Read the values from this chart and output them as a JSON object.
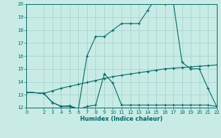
{
  "xlabel": "Humidex (Indice chaleur)",
  "xlim": [
    0,
    22
  ],
  "ylim": [
    12,
    20
  ],
  "yticks": [
    12,
    13,
    14,
    15,
    16,
    17,
    18,
    19,
    20
  ],
  "xticks": [
    0,
    2,
    3,
    4,
    5,
    6,
    7,
    8,
    9,
    10,
    11,
    12,
    13,
    14,
    15,
    16,
    17,
    18,
    19,
    20,
    21,
    22
  ],
  "background_color": "#c8ebe5",
  "line_color": "#006666",
  "grid_color": "#a0d0cc",
  "line1_x": [
    0,
    2,
    3,
    4,
    5,
    6,
    7,
    8,
    9,
    10,
    11,
    12,
    13,
    14,
    15,
    16,
    17,
    18,
    19,
    20,
    21,
    22
  ],
  "line1_y": [
    13.2,
    13.1,
    13.3,
    13.5,
    13.65,
    13.8,
    13.95,
    14.1,
    14.25,
    14.4,
    14.5,
    14.6,
    14.7,
    14.8,
    14.9,
    15.0,
    15.05,
    15.1,
    15.15,
    15.2,
    15.25,
    15.3
  ],
  "line2_x": [
    0,
    2,
    3,
    4,
    5,
    6,
    7,
    8,
    9,
    10,
    11,
    12,
    13,
    14,
    15,
    16,
    17,
    18,
    19,
    20,
    21,
    22
  ],
  "line2_y": [
    13.2,
    13.1,
    12.4,
    12.1,
    12.1,
    11.85,
    12.1,
    12.2,
    14.6,
    13.9,
    12.2,
    12.2,
    12.2,
    12.2,
    12.2,
    12.2,
    12.2,
    12.2,
    12.2,
    12.2,
    12.2,
    12.1
  ],
  "line3_x": [
    0,
    2,
    3,
    4,
    5,
    6,
    7,
    8,
    9,
    10,
    11,
    12,
    13,
    14,
    15,
    16,
    17,
    18,
    19,
    20,
    21,
    22
  ],
  "line3_y": [
    13.2,
    13.1,
    12.4,
    12.1,
    12.15,
    11.9,
    16.0,
    17.5,
    17.5,
    18.0,
    18.5,
    18.5,
    18.5,
    19.5,
    20.5,
    20.0,
    20.1,
    15.5,
    15.0,
    15.0,
    13.5,
    12.1
  ]
}
